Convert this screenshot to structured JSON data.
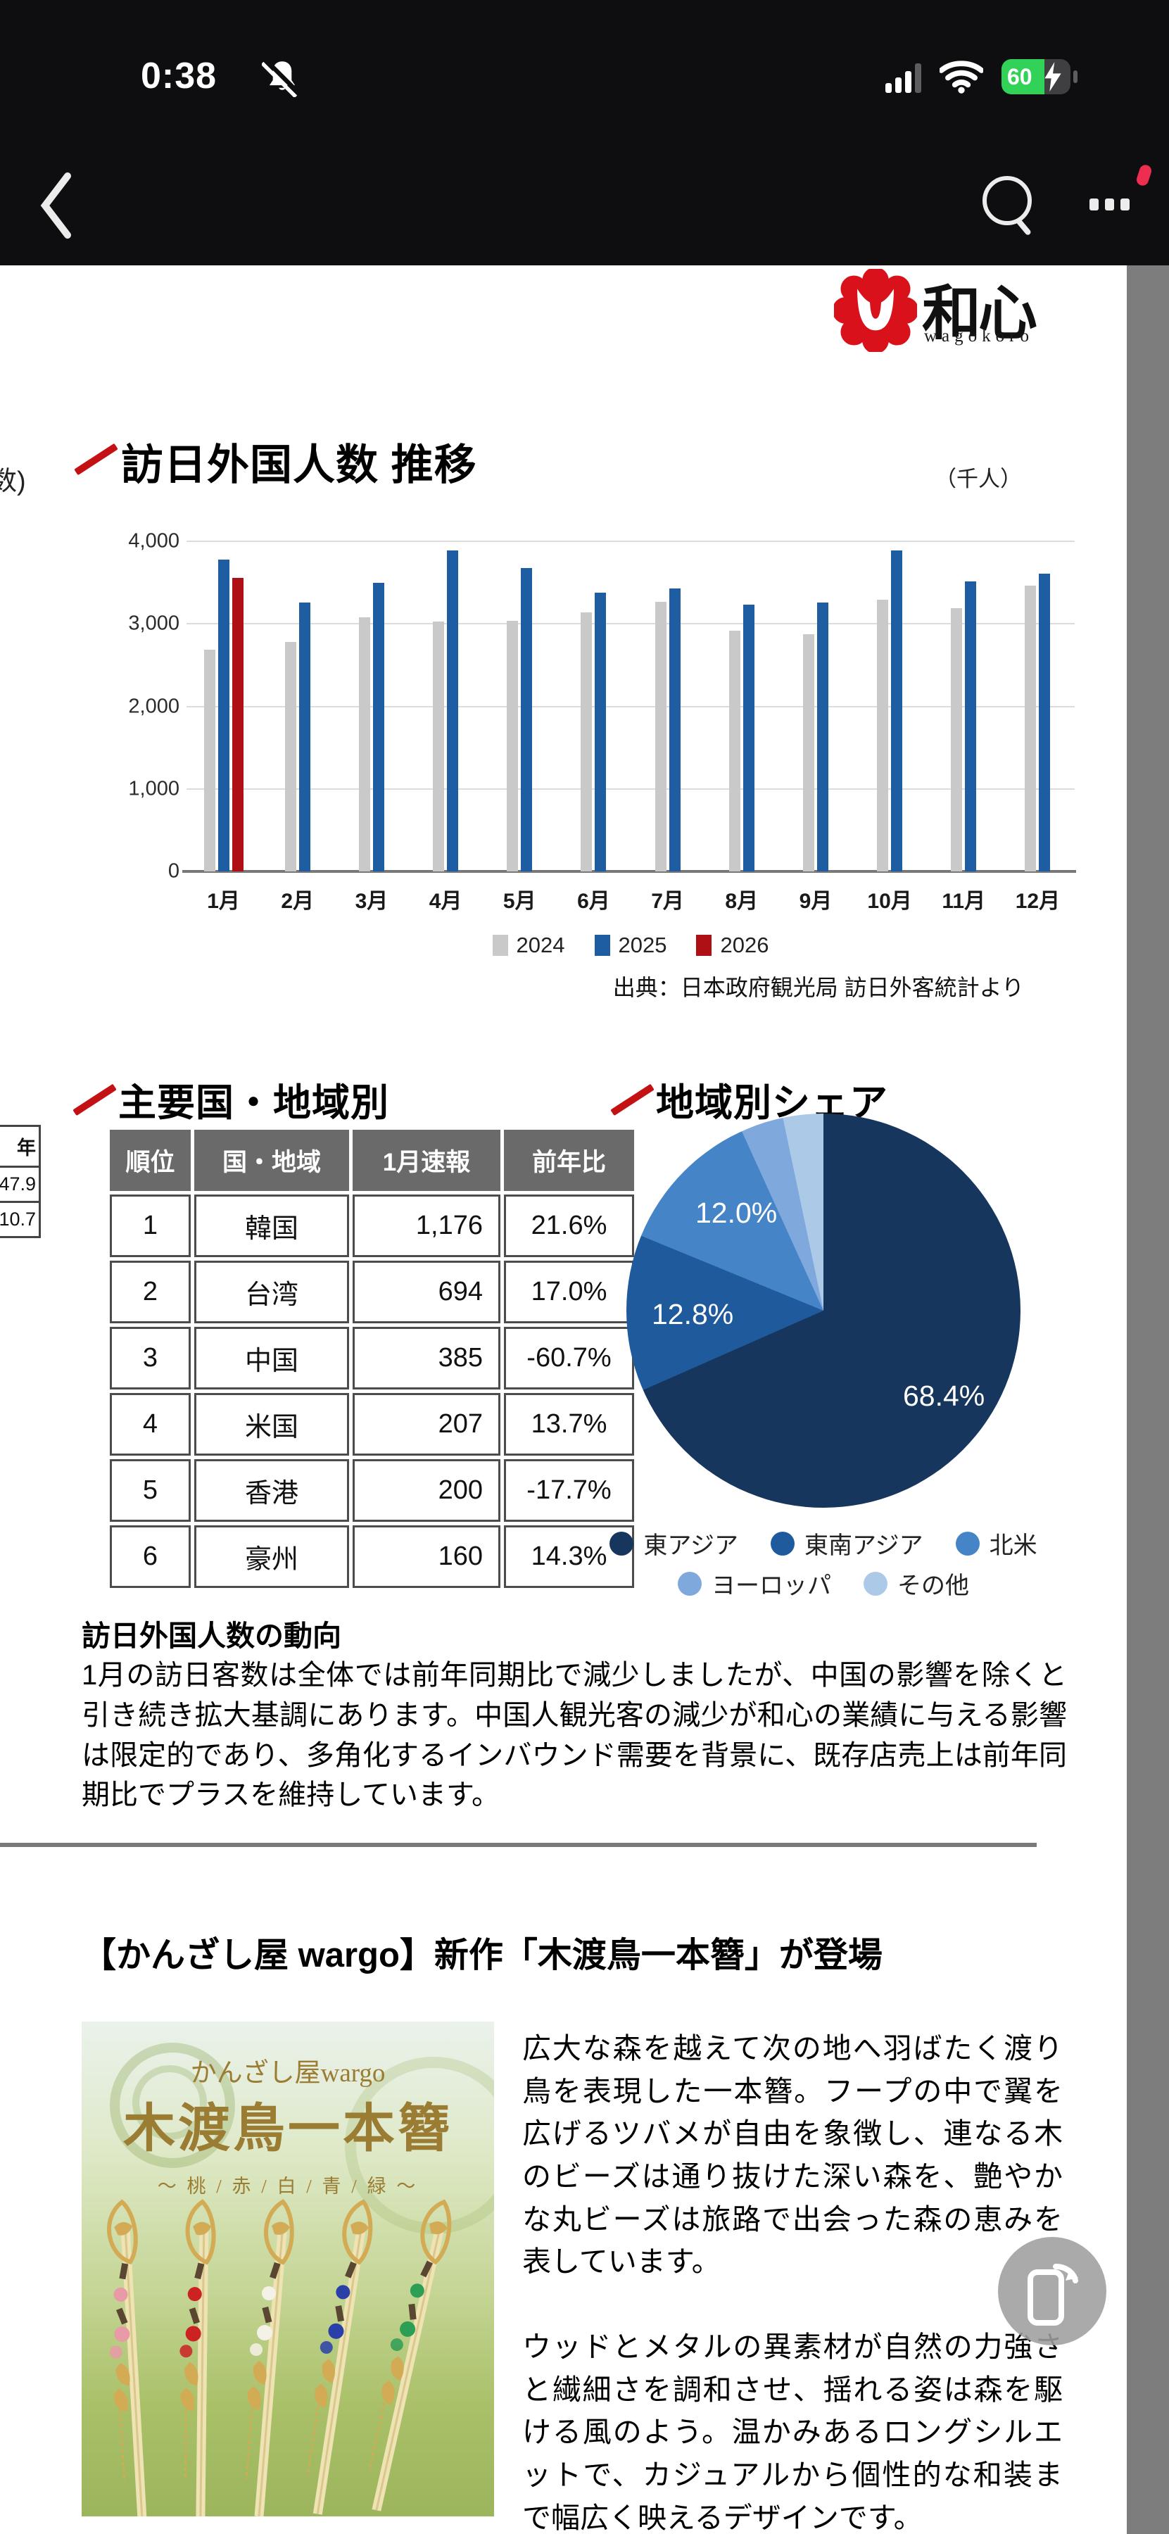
{
  "status_bar": {
    "time": "0:38",
    "battery_percent": "60"
  },
  "logo": {
    "kanji": "和心",
    "latin": "wagokoro"
  },
  "fragments": {
    "top_text": "数)",
    "side_table": {
      "header": "年",
      "values": [
        "47.9",
        "10.7"
      ]
    }
  },
  "section1": {
    "title": "訪日外国人数 推移",
    "unit_label": "（千人）"
  },
  "chart_data": [
    {
      "type": "bar",
      "title": "訪日外国人数 推移",
      "unit": "千人",
      "categories": [
        "1月",
        "2月",
        "3月",
        "4月",
        "5月",
        "6月",
        "7月",
        "8月",
        "9月",
        "10月",
        "11月",
        "12月"
      ],
      "series": [
        {
          "name": "2024",
          "color": "#c9c9c9",
          "values": [
            2688,
            2779,
            3081,
            3030,
            3040,
            3135,
            3268,
            2919,
            2872,
            3294,
            3187,
            3461
          ]
        },
        {
          "name": "2025",
          "color": "#1f5da3",
          "values": [
            3781,
            3258,
            3497,
            3893,
            3673,
            3374,
            3432,
            3230,
            3260,
            3890,
            3516,
            3611
          ]
        },
        {
          "name": "2026",
          "color": "#ae1016",
          "values": [
            3560,
            null,
            null,
            null,
            null,
            null,
            null,
            null,
            null,
            null,
            null,
            null
          ]
        }
      ],
      "ylim": [
        0,
        4000
      ],
      "yticks": [
        {
          "v": 0,
          "label": "0"
        },
        {
          "v": 1000,
          "label": "1,000"
        },
        {
          "v": 2000,
          "label": "2,000"
        },
        {
          "v": 3000,
          "label": "3,000"
        },
        {
          "v": 4000,
          "label": "4,000"
        }
      ],
      "grid": true,
      "legend_position": "bottom"
    },
    {
      "type": "pie",
      "title": "地域別シェア",
      "labels": [
        "東アジア",
        "東南アジア",
        "北米",
        "ヨーロッパ",
        "その他"
      ],
      "values": [
        68.4,
        12.8,
        12.0,
        3.5,
        3.3
      ],
      "colors": [
        "#17365d",
        "#1e5a9c",
        "#4484c7",
        "#7fa9dc",
        "#adc9e8"
      ],
      "shown_labels": [
        "68.4%",
        "12.8%",
        "12.0%"
      ],
      "legend_rows": [
        [
          0,
          1,
          2
        ],
        [
          3,
          4
        ]
      ]
    }
  ],
  "chart_source": "出典：日本政府観光局 訪日外客統計より",
  "section2": {
    "title": "主要国・地域別"
  },
  "section3": {
    "title": "地域別シェア"
  },
  "rank_table": {
    "headers": [
      "順位",
      "国・地域",
      "1月速報",
      "前年比"
    ],
    "rows": [
      {
        "rank": "1",
        "country": "韓国",
        "value": "1,176",
        "yoy": "21.6%"
      },
      {
        "rank": "2",
        "country": "台湾",
        "value": "694",
        "yoy": "17.0%"
      },
      {
        "rank": "3",
        "country": "中国",
        "value": "385",
        "yoy": "-60.7%"
      },
      {
        "rank": "4",
        "country": "米国",
        "value": "207",
        "yoy": "13.7%"
      },
      {
        "rank": "5",
        "country": "香港",
        "value": "200",
        "yoy": "-17.7%"
      },
      {
        "rank": "6",
        "country": "豪州",
        "value": "160",
        "yoy": "14.3%"
      }
    ]
  },
  "trend": {
    "heading": "訪日外国人数の動向",
    "body": "1月の訪日客数は全体では前年同期比で減少しましたが、中国の影響を除くと引き続き拡大基調にあります。中国人観光客の減少が和心の業績に与える影響は限定的であり、多角化するインバウンド需要を背景に、既存店売上は前年同期比でプラスを維持しています。"
  },
  "product": {
    "heading": "【かんざし屋 wargo】新作「木渡鳥一本簪」が登場",
    "image": {
      "brand": "かんざし屋wargo",
      "title": "木渡鳥一本簪",
      "variants": "〜 桃 / 赤 / 白 / 青 / 緑 〜",
      "bead_colors": [
        "#e89aa6",
        "#cc2222",
        "#f4f1e6",
        "#2a3fa8",
        "#2e9e55"
      ]
    },
    "para1": "広大な森を越えて次の地へ羽ばたく渡り鳥を表現した一本簪。フープの中で翼を広げるツバメが自由を象徴し、連なる木のビーズは通り抜けた深い森を、艶やかな丸ビーズは旅路で出会った森の恵みを表しています。",
    "para2": "ウッドとメタルの異素材が自然の力強さと繊細さを調和させ、揺れる姿は森を駆ける風のよう。温かみあるロングシルエットで、カジュアルから個性的な和装まで幅広く映えるデザインです。"
  },
  "colors": {
    "accent_red": "#c41114",
    "bar_blue": "#1f5da3",
    "bar_red": "#ae1016",
    "bar_gray": "#c9c9c9",
    "pct_up": "#1b1bd0",
    "pct_down": "#e42320",
    "battery_green": "#32d158"
  }
}
